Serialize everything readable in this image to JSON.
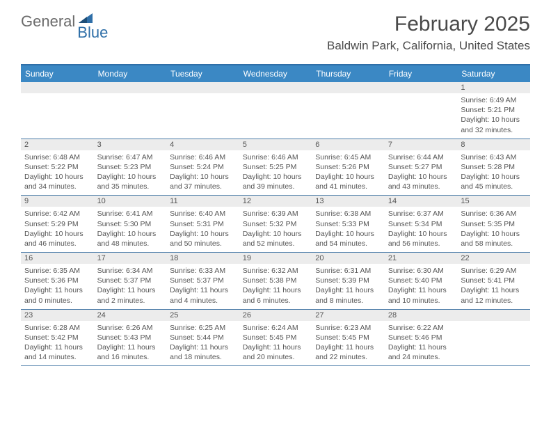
{
  "brand": {
    "part1": "General",
    "part2": "Blue"
  },
  "title": "February 2025",
  "location": "Baldwin Park, California, United States",
  "colors": {
    "header_bg": "#3b88c4",
    "border": "#2f6fa8",
    "daynum_bg": "#ececec",
    "text": "#555555"
  },
  "day_names": [
    "Sunday",
    "Monday",
    "Tuesday",
    "Wednesday",
    "Thursday",
    "Friday",
    "Saturday"
  ],
  "weeks": [
    [
      {
        "empty": true
      },
      {
        "empty": true
      },
      {
        "empty": true
      },
      {
        "empty": true
      },
      {
        "empty": true
      },
      {
        "empty": true
      },
      {
        "day": "1",
        "sunrise": "Sunrise: 6:49 AM",
        "sunset": "Sunset: 5:21 PM",
        "dl1": "Daylight: 10 hours",
        "dl2": "and 32 minutes."
      }
    ],
    [
      {
        "day": "2",
        "sunrise": "Sunrise: 6:48 AM",
        "sunset": "Sunset: 5:22 PM",
        "dl1": "Daylight: 10 hours",
        "dl2": "and 34 minutes."
      },
      {
        "day": "3",
        "sunrise": "Sunrise: 6:47 AM",
        "sunset": "Sunset: 5:23 PM",
        "dl1": "Daylight: 10 hours",
        "dl2": "and 35 minutes."
      },
      {
        "day": "4",
        "sunrise": "Sunrise: 6:46 AM",
        "sunset": "Sunset: 5:24 PM",
        "dl1": "Daylight: 10 hours",
        "dl2": "and 37 minutes."
      },
      {
        "day": "5",
        "sunrise": "Sunrise: 6:46 AM",
        "sunset": "Sunset: 5:25 PM",
        "dl1": "Daylight: 10 hours",
        "dl2": "and 39 minutes."
      },
      {
        "day": "6",
        "sunrise": "Sunrise: 6:45 AM",
        "sunset": "Sunset: 5:26 PM",
        "dl1": "Daylight: 10 hours",
        "dl2": "and 41 minutes."
      },
      {
        "day": "7",
        "sunrise": "Sunrise: 6:44 AM",
        "sunset": "Sunset: 5:27 PM",
        "dl1": "Daylight: 10 hours",
        "dl2": "and 43 minutes."
      },
      {
        "day": "8",
        "sunrise": "Sunrise: 6:43 AM",
        "sunset": "Sunset: 5:28 PM",
        "dl1": "Daylight: 10 hours",
        "dl2": "and 45 minutes."
      }
    ],
    [
      {
        "day": "9",
        "sunrise": "Sunrise: 6:42 AM",
        "sunset": "Sunset: 5:29 PM",
        "dl1": "Daylight: 10 hours",
        "dl2": "and 46 minutes."
      },
      {
        "day": "10",
        "sunrise": "Sunrise: 6:41 AM",
        "sunset": "Sunset: 5:30 PM",
        "dl1": "Daylight: 10 hours",
        "dl2": "and 48 minutes."
      },
      {
        "day": "11",
        "sunrise": "Sunrise: 6:40 AM",
        "sunset": "Sunset: 5:31 PM",
        "dl1": "Daylight: 10 hours",
        "dl2": "and 50 minutes."
      },
      {
        "day": "12",
        "sunrise": "Sunrise: 6:39 AM",
        "sunset": "Sunset: 5:32 PM",
        "dl1": "Daylight: 10 hours",
        "dl2": "and 52 minutes."
      },
      {
        "day": "13",
        "sunrise": "Sunrise: 6:38 AM",
        "sunset": "Sunset: 5:33 PM",
        "dl1": "Daylight: 10 hours",
        "dl2": "and 54 minutes."
      },
      {
        "day": "14",
        "sunrise": "Sunrise: 6:37 AM",
        "sunset": "Sunset: 5:34 PM",
        "dl1": "Daylight: 10 hours",
        "dl2": "and 56 minutes."
      },
      {
        "day": "15",
        "sunrise": "Sunrise: 6:36 AM",
        "sunset": "Sunset: 5:35 PM",
        "dl1": "Daylight: 10 hours",
        "dl2": "and 58 minutes."
      }
    ],
    [
      {
        "day": "16",
        "sunrise": "Sunrise: 6:35 AM",
        "sunset": "Sunset: 5:36 PM",
        "dl1": "Daylight: 11 hours",
        "dl2": "and 0 minutes."
      },
      {
        "day": "17",
        "sunrise": "Sunrise: 6:34 AM",
        "sunset": "Sunset: 5:37 PM",
        "dl1": "Daylight: 11 hours",
        "dl2": "and 2 minutes."
      },
      {
        "day": "18",
        "sunrise": "Sunrise: 6:33 AM",
        "sunset": "Sunset: 5:37 PM",
        "dl1": "Daylight: 11 hours",
        "dl2": "and 4 minutes."
      },
      {
        "day": "19",
        "sunrise": "Sunrise: 6:32 AM",
        "sunset": "Sunset: 5:38 PM",
        "dl1": "Daylight: 11 hours",
        "dl2": "and 6 minutes."
      },
      {
        "day": "20",
        "sunrise": "Sunrise: 6:31 AM",
        "sunset": "Sunset: 5:39 PM",
        "dl1": "Daylight: 11 hours",
        "dl2": "and 8 minutes."
      },
      {
        "day": "21",
        "sunrise": "Sunrise: 6:30 AM",
        "sunset": "Sunset: 5:40 PM",
        "dl1": "Daylight: 11 hours",
        "dl2": "and 10 minutes."
      },
      {
        "day": "22",
        "sunrise": "Sunrise: 6:29 AM",
        "sunset": "Sunset: 5:41 PM",
        "dl1": "Daylight: 11 hours",
        "dl2": "and 12 minutes."
      }
    ],
    [
      {
        "day": "23",
        "sunrise": "Sunrise: 6:28 AM",
        "sunset": "Sunset: 5:42 PM",
        "dl1": "Daylight: 11 hours",
        "dl2": "and 14 minutes."
      },
      {
        "day": "24",
        "sunrise": "Sunrise: 6:26 AM",
        "sunset": "Sunset: 5:43 PM",
        "dl1": "Daylight: 11 hours",
        "dl2": "and 16 minutes."
      },
      {
        "day": "25",
        "sunrise": "Sunrise: 6:25 AM",
        "sunset": "Sunset: 5:44 PM",
        "dl1": "Daylight: 11 hours",
        "dl2": "and 18 minutes."
      },
      {
        "day": "26",
        "sunrise": "Sunrise: 6:24 AM",
        "sunset": "Sunset: 5:45 PM",
        "dl1": "Daylight: 11 hours",
        "dl2": "and 20 minutes."
      },
      {
        "day": "27",
        "sunrise": "Sunrise: 6:23 AM",
        "sunset": "Sunset: 5:45 PM",
        "dl1": "Daylight: 11 hours",
        "dl2": "and 22 minutes."
      },
      {
        "day": "28",
        "sunrise": "Sunrise: 6:22 AM",
        "sunset": "Sunset: 5:46 PM",
        "dl1": "Daylight: 11 hours",
        "dl2": "and 24 minutes."
      },
      {
        "empty": true
      }
    ]
  ]
}
